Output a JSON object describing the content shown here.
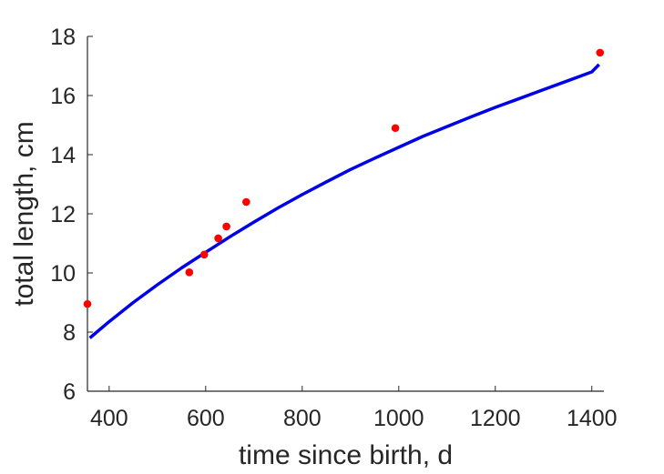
{
  "chart_data": {
    "type": "scatter",
    "title": "",
    "xlabel": "time since birth, d",
    "ylabel": "total length, cm",
    "xlim": [
      355,
      1425
    ],
    "ylim": [
      6,
      18
    ],
    "xticks": [
      400,
      600,
      800,
      1000,
      1200,
      1400
    ],
    "yticks": [
      6,
      8,
      10,
      12,
      14,
      16,
      18
    ],
    "grid": false,
    "legend": "none",
    "series": [
      {
        "kind": "points",
        "color": "#ff0000",
        "x": [
          355,
          566,
          597,
          626,
          643,
          684,
          993,
          1417
        ],
        "y": [
          8.95,
          10.02,
          10.62,
          11.17,
          11.57,
          12.4,
          14.9,
          17.45
        ]
      },
      {
        "kind": "line",
        "color": "#0000e6",
        "x": [
          360,
          400,
          450,
          500,
          550,
          600,
          650,
          700,
          750,
          800,
          850,
          900,
          950,
          1000,
          1050,
          1100,
          1150,
          1200,
          1250,
          1300,
          1350,
          1400,
          1415
        ],
        "y": [
          7.8,
          8.35,
          9.0,
          9.6,
          10.17,
          10.7,
          11.22,
          11.72,
          12.2,
          12.65,
          13.08,
          13.5,
          13.88,
          14.25,
          14.62,
          14.95,
          15.28,
          15.6,
          15.9,
          16.2,
          16.5,
          16.8,
          17.05
        ]
      }
    ]
  }
}
